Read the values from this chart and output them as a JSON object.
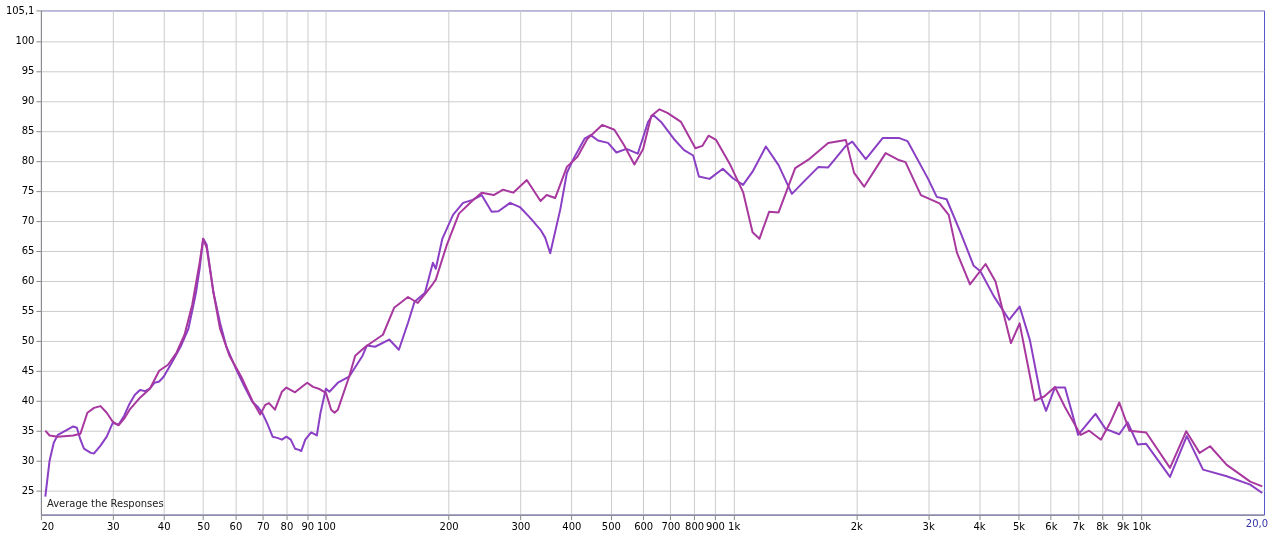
{
  "chart_data": {
    "type": "line",
    "xlim": [
      20,
      20000
    ],
    "ylim": [
      21,
      105.1
    ],
    "log": "x",
    "grid": true,
    "line_style": "solid",
    "marker": "none",
    "xticks": [
      20,
      30,
      40,
      50,
      60,
      70,
      80,
      90,
      100,
      200,
      300,
      400,
      500,
      600,
      700,
      800,
      900,
      {
        "value": 1000,
        "label": "1k"
      },
      {
        "value": 2000,
        "label": "2k"
      },
      {
        "value": 3000,
        "label": "3k"
      },
      {
        "value": 4000,
        "label": "4k"
      },
      {
        "value": 5000,
        "label": "5k"
      },
      {
        "value": 6000,
        "label": "6k"
      },
      {
        "value": 7000,
        "label": "7k"
      },
      {
        "value": 8000,
        "label": "8k"
      },
      {
        "value": 9000,
        "label": "9k"
      },
      {
        "value": 10000,
        "label": "10k"
      }
    ],
    "yticks": [
      25,
      30,
      35,
      40,
      45,
      50,
      55,
      60,
      65,
      70,
      75,
      80,
      85,
      90,
      95,
      100,
      {
        "value": 105.1,
        "label": "105,1"
      }
    ],
    "annotations": [
      "Average the Responses",
      "20,0"
    ],
    "series": [
      {
        "color": "#8a3fc4",
        "x": [
          20.5,
          21,
          21.5,
          22,
          23,
          24,
          24.5,
          25,
          25.5,
          26.5,
          27,
          28,
          29,
          30,
          31,
          32,
          33,
          34,
          35,
          36,
          37,
          38,
          39,
          40,
          42,
          44,
          46,
          47,
          48,
          49,
          50,
          51,
          52,
          53,
          55,
          57,
          60,
          63,
          66,
          68,
          70,
          72,
          74,
          76,
          78,
          80,
          82,
          84,
          86,
          87,
          89,
          92,
          95,
          97,
          100,
          102,
          107,
          114,
          123,
          126,
          132,
          143,
          151,
          159,
          165,
          175,
          183,
          186,
          193,
          205,
          217,
          229,
          241,
          255,
          265,
          283,
          299,
          317,
          336,
          345,
          355,
          376,
          390,
          406,
          431,
          446,
          465,
          492,
          516,
          546,
          582,
          617,
          634,
          664,
          713,
          756,
          796,
          822,
          873,
          941,
          996,
          1055,
          1113,
          1200,
          1289,
          1390,
          1499,
          1615,
          1706,
          1885,
          1955,
          2110,
          2320,
          2550,
          2670,
          3000,
          3150,
          3330,
          3600,
          3880,
          4030,
          4350,
          4740,
          5030,
          5330,
          5680,
          5840,
          6140,
          6500,
          7000,
          7720,
          8170,
          8830,
          9260,
          9800,
          10280,
          11760,
          12930,
          14170,
          16200,
          18500,
          19800
        ],
        "values": [
          24,
          30,
          33,
          34.3,
          35,
          35.7,
          35.5,
          33.5,
          32,
          31.3,
          31.2,
          32.5,
          34,
          36.3,
          36,
          37.5,
          39.5,
          41,
          41.8,
          41.6,
          42,
          43,
          43.2,
          44,
          46.5,
          49,
          52,
          55,
          58,
          62,
          67,
          66,
          62,
          58,
          53,
          49,
          45.5,
          42.5,
          39.8,
          39,
          37.8,
          36,
          34,
          33.8,
          33.5,
          34,
          33.5,
          32,
          31.8,
          31.6,
          33.5,
          34.7,
          34.2,
          38,
          42,
          41.5,
          43,
          44,
          47.5,
          49.2,
          49,
          50.2,
          48.5,
          53,
          56.5,
          58,
          63,
          62,
          67,
          71,
          73,
          73.5,
          74.3,
          71.5,
          71.6,
          73,
          72.3,
          70.5,
          68.5,
          67.2,
          64.6,
          72,
          78,
          80.5,
          83.7,
          84.3,
          83.4,
          83,
          81.4,
          82,
          81.2,
          86.5,
          87.7,
          86.5,
          83.7,
          81.8,
          80.9,
          77.4,
          77,
          78.7,
          77.1,
          76,
          78.2,
          82.4,
          79.3,
          74.5,
          76.8,
          79,
          78.9,
          82.5,
          83.2,
          80.3,
          83.8,
          83.8,
          83.3,
          77,
          74,
          73.6,
          68.1,
          62.5,
          61.6,
          57.4,
          53.5,
          55.7,
          50.1,
          40.5,
          38.3,
          42.2,
          42.2,
          34.3,
          37.8,
          35.3,
          34.4,
          36.4,
          32.7,
          32.8,
          27.3,
          34.1,
          28.5,
          27.4,
          26,
          24.6
        ]
      },
      {
        "color": "#a8389e",
        "x": [
          20.5,
          21,
          22,
          24,
          25,
          26,
          27,
          28,
          29,
          30,
          31,
          32,
          33,
          35,
          37,
          39,
          41,
          43,
          45,
          47,
          49,
          50,
          51,
          53,
          55,
          58,
          62,
          66,
          69,
          71,
          72.5,
          75,
          78,
          80,
          84,
          88,
          90,
          93,
          96,
          100,
          103,
          105,
          107,
          114,
          118,
          125,
          138,
          147,
          159,
          168,
          176,
          183,
          186,
          198,
          212,
          229,
          241,
          258,
          272,
          288,
          311,
          336,
          348,
          365,
          390,
          414,
          438,
          476,
          510,
          538,
          571,
          600,
          628,
          658,
          688,
          743,
          806,
          838,
          868,
          906,
          982,
          1055,
          1113,
          1157,
          1222,
          1289,
          1416,
          1526,
          1706,
          1885,
          1975,
          2090,
          2360,
          2530,
          2640,
          2880,
          3200,
          3370,
          3530,
          3800,
          4150,
          4390,
          4790,
          5030,
          5480,
          5780,
          6140,
          6500,
          7100,
          7450,
          7960,
          8410,
          8830,
          9350,
          10280,
          11760,
          12890,
          13900,
          14750,
          16200,
          18500,
          19800
        ],
        "values": [
          35,
          34.2,
          34,
          34.2,
          34.5,
          38,
          38.8,
          39.1,
          38,
          36.5,
          35.9,
          37,
          38.5,
          40.5,
          42,
          45,
          46,
          48,
          51,
          56,
          63,
          67,
          65.5,
          58,
          52,
          47.5,
          44,
          40,
          37.7,
          39.3,
          39.6,
          38.5,
          41.5,
          42.2,
          41.4,
          42.5,
          43,
          42.3,
          42,
          41.3,
          38.5,
          38,
          38.5,
          44,
          47.5,
          49,
          51,
          55.5,
          57.3,
          56.3,
          58,
          59.5,
          60.2,
          66,
          71.2,
          73.4,
          74.7,
          74.3,
          75.2,
          74.7,
          76.8,
          73.3,
          74.3,
          73.8,
          79,
          80.7,
          83.7,
          86,
          85.2,
          82.7,
          79.4,
          82,
          87.5,
          88.6,
          88,
          86.5,
          82.1,
          82.5,
          84.2,
          83.5,
          79.3,
          74.8,
          68.1,
          67,
          71.5,
          71.4,
          78.8,
          80.2,
          83,
          83.5,
          78,
          75.7,
          81.3,
          80.2,
          79.8,
          74.3,
          72.9,
          71,
          64.7,
          59.4,
          62.8,
          59.9,
          49.6,
          52.9,
          40,
          40.7,
          42.3,
          38.9,
          34.3,
          35,
          33.5,
          36.5,
          39.7,
          35,
          34.7,
          28.8,
          34.9,
          31.3,
          32.4,
          29.3,
          26.5,
          25.7
        ]
      }
    ]
  }
}
